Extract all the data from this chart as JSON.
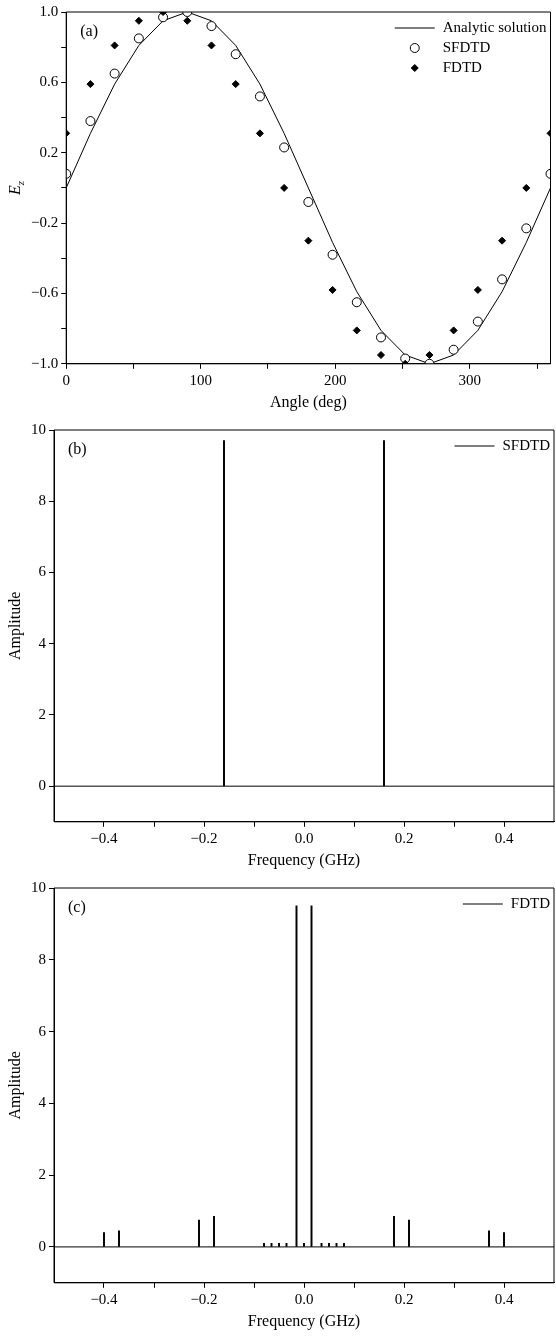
{
  "chart_data": [
    {
      "type": "line",
      "annotations": [
        "(a)"
      ],
      "xlabel": "Angle (deg)",
      "ylabel": "E$_{z}$",
      "legend": "top right",
      "xlim": [
        0,
        360
      ],
      "xticks": [
        0,
        {
          "value": 50,
          "label": null
        },
        100,
        {
          "value": 150,
          "label": null
        },
        200,
        {
          "value": 250,
          "label": null
        },
        300,
        {
          "value": 350,
          "label": null
        }
      ],
      "ylim": [
        -1,
        1
      ],
      "yticks": [
        {
          "value": 1,
          "label": "1.0"
        },
        {
          "value": 0.8,
          "label": null
        },
        0.6,
        {
          "value": 0.4,
          "label": null
        },
        0.2,
        {
          "value": 0,
          "label": null
        },
        {
          "value": -0.2,
          "label": "−0.2"
        },
        {
          "value": -0.4,
          "label": null
        },
        {
          "value": -0.6,
          "label": "−0.6"
        },
        {
          "value": -0.8,
          "label": null
        },
        {
          "value": -1,
          "label": "−1.0"
        }
      ],
      "x": [
        0,
        18,
        36,
        54,
        72,
        90,
        108,
        126,
        144,
        162,
        180,
        198,
        216,
        234,
        252,
        270,
        288,
        306,
        324,
        342,
        360
      ],
      "series": [
        {
          "name": "Analytic solution",
          "type": "line",
          "color": "#000000",
          "marker": "none",
          "values": [
            0,
            0.31,
            0.59,
            0.81,
            0.95,
            1,
            0.95,
            0.81,
            0.59,
            0.31,
            0,
            -0.31,
            -0.59,
            -0.81,
            -0.95,
            -1,
            -0.95,
            -0.81,
            -0.59,
            -0.31,
            0
          ]
        },
        {
          "name": "SFDTD",
          "type": "scatter",
          "color": "#000000",
          "marker": "circle",
          "values": [
            0.08,
            0.38,
            0.65,
            0.85,
            0.97,
            1,
            0.92,
            0.76,
            0.52,
            0.23,
            -0.08,
            -0.38,
            -0.65,
            -0.85,
            -0.97,
            -1,
            -0.92,
            -0.76,
            -0.52,
            -0.23,
            0.08
          ]
        },
        {
          "name": "FDTD",
          "type": "scatter",
          "color": "#000000",
          "marker": "diamond",
          "values": [
            0.31,
            0.59,
            0.81,
            0.95,
            1,
            0.95,
            0.81,
            0.59,
            0.31,
            0,
            -0.3,
            -0.58,
            -0.81,
            -0.95,
            -1,
            -0.95,
            -0.81,
            -0.58,
            -0.3,
            0,
            0.31
          ]
        }
      ]
    },
    {
      "type": "bar",
      "annotations": [
        "(b)"
      ],
      "xlabel": "Frequency (GHz)",
      "ylabel": "Amplitude",
      "legend": "top right",
      "xlim": [
        -0.5,
        0.5
      ],
      "xticks": [
        {
          "value": -0.4,
          "label": "−0.4"
        },
        {
          "value": -0.3,
          "label": null
        },
        {
          "value": -0.2,
          "label": "−0.2"
        },
        {
          "value": -0.1,
          "label": null
        },
        {
          "value": 0,
          "label": "0.0"
        },
        {
          "value": 0.1,
          "label": null
        },
        0.2,
        {
          "value": 0.3,
          "label": null
        },
        0.4
      ],
      "ylim": [
        -1,
        10
      ],
      "yticks": [
        0,
        2,
        4,
        6,
        8,
        10
      ],
      "ref_lines": [
        {
          "axis": "y",
          "value": 0,
          "color": "#000000",
          "line_style": "solid"
        }
      ],
      "series": [
        {
          "name": "SFDTD",
          "color": "#000000",
          "x": [
            -0.16,
            0.16
          ],
          "values": [
            9.7,
            9.7
          ]
        }
      ]
    },
    {
      "type": "bar",
      "annotations": [
        "(c)"
      ],
      "xlabel": "Frequency (GHz)",
      "ylabel": "Amplitude",
      "legend": "top right",
      "xlim": [
        -0.5,
        0.5
      ],
      "xticks": [
        {
          "value": -0.4,
          "label": "−0.4"
        },
        {
          "value": -0.3,
          "label": null
        },
        {
          "value": -0.2,
          "label": "−0.2"
        },
        {
          "value": -0.1,
          "label": null
        },
        {
          "value": 0,
          "label": "0.0"
        },
        {
          "value": 0.1,
          "label": null
        },
        0.2,
        {
          "value": 0.3,
          "label": null
        },
        0.4
      ],
      "ylim": [
        -1,
        10
      ],
      "yticks": [
        0,
        2,
        4,
        6,
        8,
        10
      ],
      "ref_lines": [
        {
          "axis": "y",
          "value": 0,
          "color": "#000000",
          "line_style": "solid"
        }
      ],
      "series": [
        {
          "name": "FDTD",
          "color": "#000000",
          "x": [
            -0.4,
            -0.37,
            -0.21,
            -0.18,
            -0.08,
            -0.065,
            -0.05,
            -0.035,
            -0.015,
            0,
            0.015,
            0.035,
            0.05,
            0.065,
            0.08,
            0.18,
            0.21,
            0.37,
            0.4
          ],
          "values": [
            0.4,
            0.45,
            0.75,
            0.85,
            0.1,
            0.1,
            0.1,
            0.1,
            9.5,
            0.1,
            9.5,
            0.1,
            0.1,
            0.1,
            0.1,
            0.85,
            0.75,
            0.45,
            0.4
          ]
        }
      ]
    }
  ]
}
